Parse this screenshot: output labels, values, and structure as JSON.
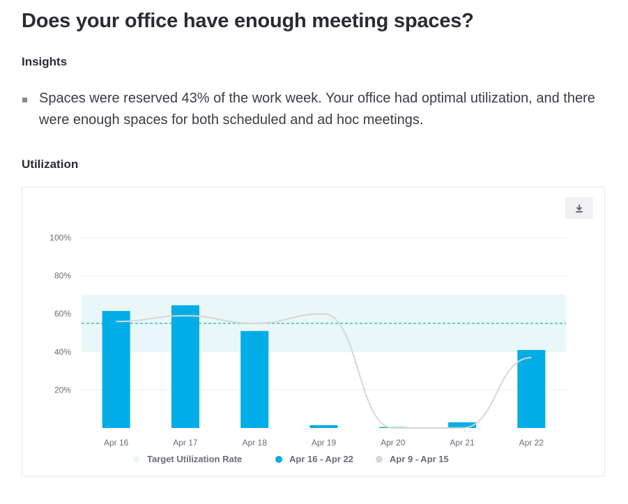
{
  "page": {
    "title": "Does your office have enough meeting spaces?"
  },
  "insights": {
    "heading": "Insights",
    "items": [
      "Spaces were reserved 43% of the work week. Your office had optimal utilization, and there were enough spaces for both scheduled and ad hoc meetings."
    ]
  },
  "utilization": {
    "heading": "Utilization",
    "download_icon": "download-icon"
  },
  "colors": {
    "current_series": "#00ade6",
    "previous_series": "#d6d6d6",
    "target_band": "#eaf7f8",
    "target_line": "#3ec6c8",
    "grid": "#efefef"
  },
  "chart_data": {
    "type": "bar",
    "title": "Utilization",
    "xlabel": "",
    "ylabel": "",
    "ylim": [
      0,
      100
    ],
    "yticks": [
      "20%",
      "40%",
      "60%",
      "80%",
      "100%"
    ],
    "ytick_values": [
      20,
      40,
      60,
      80,
      100
    ],
    "categories": [
      "Apr 16",
      "Apr 17",
      "Apr 18",
      "Apr 19",
      "Apr 20",
      "Apr 21",
      "Apr 22"
    ],
    "series": [
      {
        "name": "Apr 16 - Apr 22",
        "type": "bar",
        "values": [
          61.5,
          64.5,
          51,
          1.5,
          0.5,
          3,
          41
        ]
      },
      {
        "name": "Apr 9 - Apr 15",
        "type": "line",
        "values": [
          56,
          59,
          55,
          60,
          0,
          0,
          37
        ]
      }
    ],
    "target": {
      "name": "Target Utilization Rate",
      "band": [
        40,
        70
      ],
      "line": 55
    },
    "legend": [
      "Target Utilization Rate",
      "Apr 16 - Apr 22",
      "Apr 9 - Apr 15"
    ],
    "legend_position": "bottom-center",
    "grid": true
  }
}
